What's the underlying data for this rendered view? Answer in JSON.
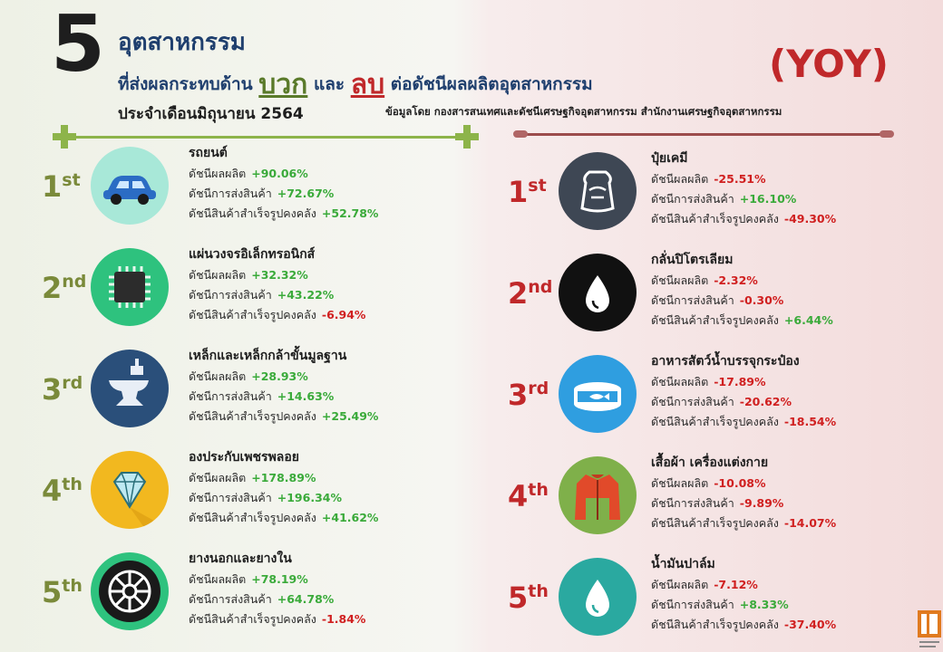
{
  "header": {
    "number": "5",
    "line1": "อุตสาหกรรม",
    "line2_pre": "ที่ส่งผลกระทบด้าน",
    "positive_word": "บวก",
    "and_word": "และ",
    "negative_word": "ลบ",
    "line2_post": "ต่อดัชนีผลผลิตอุตสาหกรรม",
    "line3": "ประจำเดือนมิถุนายน 2564",
    "yoy": "(YOY)",
    "source": "ข้อมูลโดย กองสารสนเทศและดัชนีเศรษฐกิจอุตสาหกรรม สำนักงานเศรษฐกิจอุตสาหกรรม"
  },
  "labels": {
    "production": "ดัชนีผลผลิต",
    "shipment": "ดัชนีการส่งสินค้า",
    "inventory": "ดัชนีสินค้าสำเร็จรูปคงคลัง"
  },
  "positive": [
    {
      "rank": "1",
      "suffix": "st",
      "name": "รถยนต์",
      "icon": "car-icon",
      "color": "#a8e8d8",
      "production": "+90.06%",
      "shipment": "+72.67%",
      "inventory": "+52.78%"
    },
    {
      "rank": "2",
      "suffix": "nd",
      "name": "แผ่นวงจรอิเล็กทรอนิกส์",
      "icon": "chip-icon",
      "color": "#2ec27e",
      "production": "+32.32%",
      "shipment": "+43.22%",
      "inventory": "-6.94%"
    },
    {
      "rank": "3",
      "suffix": "rd",
      "name": "เหล็กและเหล็กกล้าขั้นมูลฐาน",
      "icon": "anvil-icon",
      "color": "#2a4f7a",
      "production": "+28.93%",
      "shipment": "+14.63%",
      "inventory": "+25.49%"
    },
    {
      "rank": "4",
      "suffix": "th",
      "name": "องประกับเพชรพลอย",
      "icon": "diamond-icon",
      "color": "#f2b81f",
      "production": "+178.89%",
      "shipment": "+196.34%",
      "inventory": "+41.62%"
    },
    {
      "rank": "5",
      "suffix": "th",
      "name": "ยางนอกและยางใน",
      "icon": "tire-icon",
      "color": "#2ec27e",
      "production": "+78.19%",
      "shipment": "+64.78%",
      "inventory": "-1.84%"
    }
  ],
  "negative": [
    {
      "rank": "1",
      "suffix": "st",
      "name": "ปุ๋ยเคมี",
      "icon": "fertilizer-bag-icon",
      "color": "#3e4754",
      "production": "-25.51%",
      "shipment": "+16.10%",
      "inventory": "-49.30%"
    },
    {
      "rank": "2",
      "suffix": "nd",
      "name": "กลั่นปิโตรเลียม",
      "icon": "oil-drop-icon",
      "color": "#111111",
      "production": "-2.32%",
      "shipment": "-0.30%",
      "inventory": "+6.44%"
    },
    {
      "rank": "3",
      "suffix": "rd",
      "name": "อาหารสัตว์น้ำบรรจุกระป๋อง",
      "icon": "canned-fish-icon",
      "color": "#2f9ee0",
      "production": "-17.89%",
      "shipment": "-20.62%",
      "inventory": "-18.54%"
    },
    {
      "rank": "4",
      "suffix": "th",
      "name": "เสื้อผ้า เครื่องแต่งกาย",
      "icon": "jacket-icon",
      "color": "#7fb04a",
      "production": "-10.08%",
      "shipment": "-9.89%",
      "inventory": "-14.07%"
    },
    {
      "rank": "5",
      "suffix": "th",
      "name": "น้ำมันปาล์ม",
      "icon": "palm-oil-drop-icon",
      "color": "#2aa9a0",
      "production": "-7.12%",
      "shipment": "+8.33%",
      "inventory": "-37.40%"
    }
  ]
}
